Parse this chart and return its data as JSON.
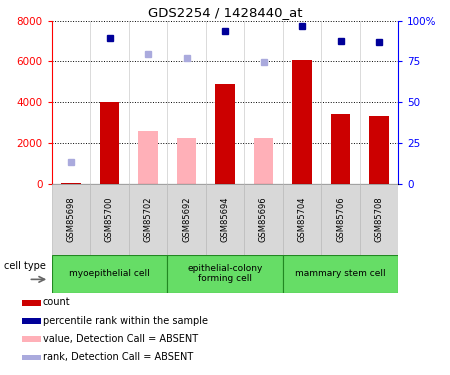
{
  "title": "GDS2254 / 1428440_at",
  "samples": [
    "GSM85698",
    "GSM85700",
    "GSM85702",
    "GSM85692",
    "GSM85694",
    "GSM85696",
    "GSM85704",
    "GSM85706",
    "GSM85708"
  ],
  "count_values": [
    50,
    4000,
    null,
    null,
    4900,
    null,
    6050,
    3400,
    3300
  ],
  "count_absent": [
    null,
    null,
    2600,
    2250,
    null,
    2250,
    null,
    null,
    null
  ],
  "rank_values": [
    null,
    7150,
    null,
    null,
    7500,
    null,
    7750,
    7000,
    6950
  ],
  "rank_absent": [
    1050,
    null,
    6350,
    6150,
    null,
    5950,
    null,
    null,
    null
  ],
  "cell_type_labels": [
    "myoepithelial cell",
    "epithelial-colony\nforming cell",
    "mammary stem cell"
  ],
  "cell_type_ranges": [
    [
      0,
      3
    ],
    [
      3,
      6
    ],
    [
      6,
      9
    ]
  ],
  "cell_type_color": "#66dd66",
  "ylim_left": [
    0,
    8000
  ],
  "ylim_right": [
    0,
    100
  ],
  "left_ticks": [
    0,
    2000,
    4000,
    6000,
    8000
  ],
  "right_ticks": [
    0,
    25,
    50,
    75,
    100
  ],
  "right_tick_labels": [
    "0",
    "25",
    "50",
    "75",
    "100%"
  ],
  "count_color": "#cc0000",
  "count_absent_color": "#ffb0b8",
  "rank_color": "#000099",
  "rank_absent_color": "#aaaadd",
  "sample_box_color": "#d8d8d8",
  "legend_items": [
    {
      "label": "count",
      "color": "#cc0000"
    },
    {
      "label": "percentile rank within the sample",
      "color": "#000099"
    },
    {
      "label": "value, Detection Call = ABSENT",
      "color": "#ffb0b8"
    },
    {
      "label": "rank, Detection Call = ABSENT",
      "color": "#aaaadd"
    }
  ]
}
